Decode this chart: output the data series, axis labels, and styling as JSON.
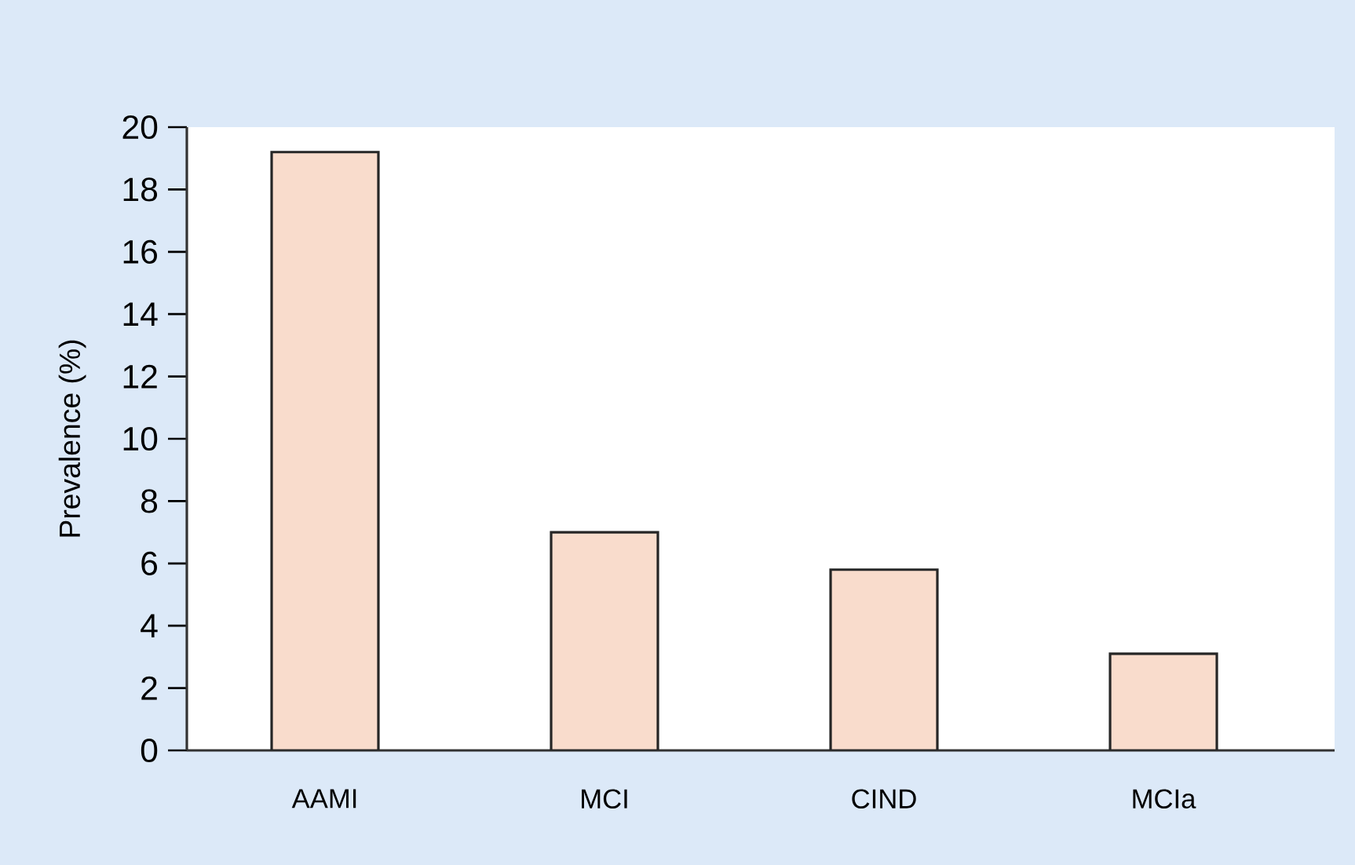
{
  "chart_data": {
    "type": "bar",
    "ylabel": "Prevalence (%)",
    "categories": [
      "AAMI",
      "MCI",
      "CIND",
      "MCIa"
    ],
    "values": [
      19.2,
      7.0,
      5.8,
      3.1
    ],
    "color": "#f9dccc",
    "ylim": [
      0,
      20
    ],
    "yticks": [
      0,
      2,
      4,
      6,
      8,
      10,
      12,
      14,
      16,
      18,
      20
    ]
  }
}
